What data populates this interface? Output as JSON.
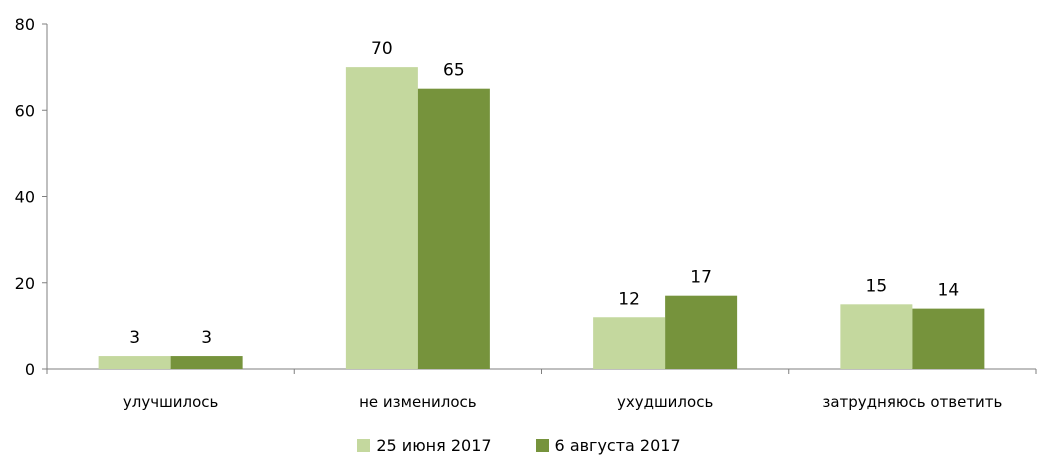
{
  "chart_data": {
    "type": "bar",
    "categories": [
      "улучшилось",
      "не изменилось",
      "ухудшилось",
      "затрудняюсь ответить"
    ],
    "series": [
      {
        "name": "25 июня 2017",
        "values": [
          3,
          70,
          12,
          15
        ],
        "color": "#c4d89e"
      },
      {
        "name": "6 августа 2017",
        "values": [
          3,
          65,
          17,
          14
        ],
        "color": "#76933c"
      }
    ],
    "y_ticks": [
      "0",
      "20",
      "40",
      "60",
      "80"
    ],
    "ylim": [
      0,
      80
    ],
    "legend_position": "bottom",
    "grid": false
  }
}
